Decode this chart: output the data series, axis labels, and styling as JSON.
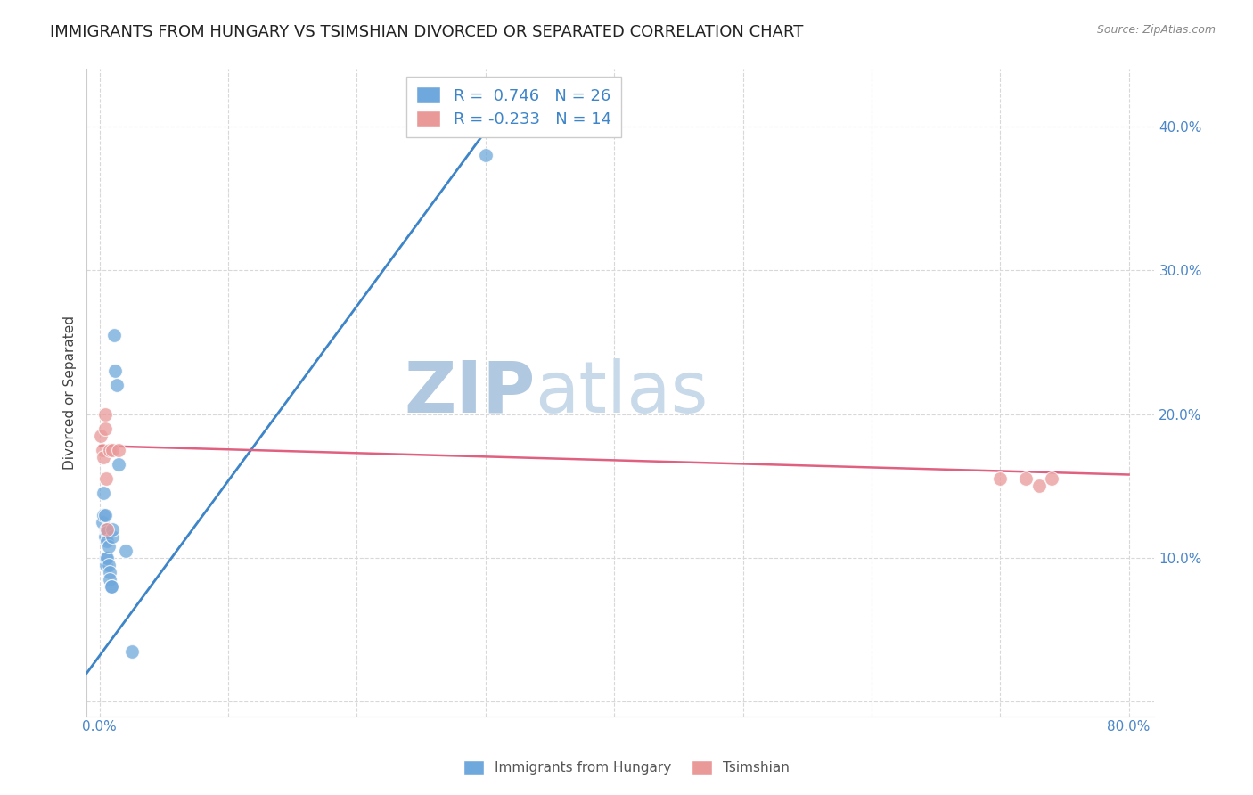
{
  "title": "IMMIGRANTS FROM HUNGARY VS TSIMSHIAN DIVORCED OR SEPARATED CORRELATION CHART",
  "source": "Source: ZipAtlas.com",
  "ylabel": "Divorced or Separated",
  "xlim": [
    -0.01,
    0.82
  ],
  "ylim": [
    -0.01,
    0.44
  ],
  "xticks": [
    0.0,
    0.1,
    0.2,
    0.3,
    0.4,
    0.5,
    0.6,
    0.7,
    0.8
  ],
  "xticklabels": [
    "0.0%",
    "",
    "",
    "",
    "",
    "",
    "",
    "",
    "80.0%"
  ],
  "yticks": [
    0.0,
    0.1,
    0.2,
    0.3,
    0.4
  ],
  "yticklabels": [
    "",
    "10.0%",
    "20.0%",
    "30.0%",
    "40.0%"
  ],
  "legend_r_blue": "R =  0.746",
  "legend_n_blue": "N = 26",
  "legend_r_pink": "R = -0.233",
  "legend_n_pink": "N = 14",
  "blue_color": "#6fa8dc",
  "pink_color": "#ea9999",
  "line_blue_color": "#3d85c8",
  "line_pink_color": "#e06080",
  "tick_color": "#4a86c8",
  "watermark_zip_color": "#b8cfe8",
  "watermark_atlas_color": "#c8d8e8",
  "blue_x": [
    0.002,
    0.003,
    0.003,
    0.004,
    0.004,
    0.005,
    0.005,
    0.005,
    0.006,
    0.006,
    0.006,
    0.007,
    0.007,
    0.008,
    0.008,
    0.009,
    0.009,
    0.01,
    0.01,
    0.011,
    0.012,
    0.013,
    0.015,
    0.02,
    0.025,
    0.3
  ],
  "blue_y": [
    0.125,
    0.13,
    0.145,
    0.13,
    0.115,
    0.12,
    0.095,
    0.1,
    0.118,
    0.112,
    0.1,
    0.108,
    0.095,
    0.09,
    0.085,
    0.08,
    0.08,
    0.115,
    0.12,
    0.255,
    0.23,
    0.22,
    0.165,
    0.105,
    0.035,
    0.38
  ],
  "pink_x": [
    0.001,
    0.002,
    0.003,
    0.004,
    0.004,
    0.005,
    0.006,
    0.008,
    0.01,
    0.015,
    0.7,
    0.72,
    0.73,
    0.74
  ],
  "pink_y": [
    0.185,
    0.175,
    0.17,
    0.2,
    0.19,
    0.155,
    0.12,
    0.175,
    0.175,
    0.175,
    0.155,
    0.155,
    0.15,
    0.155
  ],
  "blue_line_x": [
    -0.01,
    0.315
  ],
  "blue_line_y": [
    0.02,
    0.415
  ],
  "pink_line_x": [
    0.0,
    0.8
  ],
  "pink_line_y": [
    0.178,
    0.158
  ],
  "grid_color": "#d8d8d8",
  "background_color": "#ffffff",
  "title_fontsize": 13,
  "axis_label_fontsize": 11,
  "tick_label_fontsize": 11,
  "legend_fontsize": 13
}
